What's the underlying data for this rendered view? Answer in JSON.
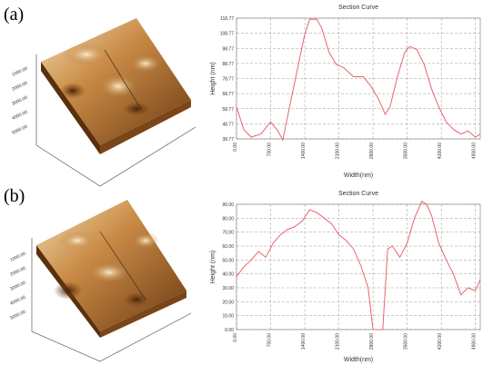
{
  "chart_data": [
    {
      "type": "line",
      "label": "(a)",
      "title": "Section Curve",
      "y_label": "Height (nm)",
      "x_label": "Width(nm)",
      "x": [
        0,
        150,
        300,
        500,
        700,
        850,
        950,
        1100,
        1250,
        1400,
        1500,
        1650,
        1750,
        1900,
        2050,
        2200,
        2400,
        2600,
        2750,
        2900,
        3050,
        3150,
        3300,
        3450,
        3550,
        3700,
        3850,
        4000,
        4150,
        4300,
        4450,
        4600,
        4750,
        4900,
        5000
      ],
      "values": [
        60,
        45,
        40,
        42,
        50,
        44,
        38,
        62,
        85,
        108,
        118,
        118,
        112,
        96,
        88,
        86,
        80,
        80,
        74,
        66,
        55,
        60,
        80,
        96,
        100,
        98,
        88,
        72,
        60,
        50,
        45,
        42,
        44,
        40,
        42
      ],
      "color": "#e8646e",
      "xlim": [
        0,
        5000
      ],
      "ylim": [
        38.77,
        118.77
      ],
      "xticks": [
        {
          "value": 0,
          "label": "0.00"
        },
        {
          "value": 700,
          "label": "700.00"
        },
        {
          "value": 1400,
          "label": "1400.00"
        },
        {
          "value": 2100,
          "label": "2100.00"
        },
        {
          "value": 2800,
          "label": "2800.00"
        },
        {
          "value": 3500,
          "label": "3500.00"
        },
        {
          "value": 4200,
          "label": "4200.00"
        },
        {
          "value": 4900,
          "label": "4900.00"
        }
      ],
      "yticks": [
        38.77,
        48.77,
        58.77,
        68.77,
        78.77,
        88.77,
        98.77,
        108.77,
        118.77
      ],
      "grid": true
    },
    {
      "type": "line",
      "label": "(b)",
      "title": "Section Curve",
      "y_label": "Height (nm)",
      "x_label": "Width(nm)",
      "x": [
        0,
        150,
        300,
        450,
        600,
        750,
        900,
        1050,
        1200,
        1350,
        1500,
        1650,
        1800,
        1950,
        2100,
        2250,
        2400,
        2550,
        2700,
        2800,
        2900,
        3000,
        3100,
        3200,
        3350,
        3500,
        3650,
        3800,
        3900,
        4000,
        4150,
        4300,
        4450,
        4600,
        4750,
        4900,
        5000
      ],
      "values": [
        38,
        45,
        50,
        56,
        52,
        62,
        68,
        72,
        74,
        78,
        86,
        84,
        80,
        76,
        68,
        64,
        58,
        46,
        30,
        0,
        0,
        0,
        58,
        60,
        52,
        62,
        80,
        92,
        90,
        82,
        62,
        50,
        40,
        25,
        30,
        28,
        36
      ],
      "color": "#e8646e",
      "xlim": [
        0,
        5000
      ],
      "ylim": [
        0,
        90
      ],
      "xticks": [
        {
          "value": 0,
          "label": "0.00"
        },
        {
          "value": 700,
          "label": "700.00"
        },
        {
          "value": 1400,
          "label": "1400.00"
        },
        {
          "value": 2100,
          "label": "2100.00"
        },
        {
          "value": 2800,
          "label": "2800.00"
        },
        {
          "value": 3500,
          "label": "3500.00"
        },
        {
          "value": 4200,
          "label": "4200.00"
        },
        {
          "value": 4900,
          "label": "4900.00"
        }
      ],
      "yticks": [
        {
          "value": 0,
          "label": "0.00"
        },
        {
          "value": 10,
          "label": "10.00"
        },
        {
          "value": 20,
          "label": "20.00"
        },
        {
          "value": 30,
          "label": "30.00"
        },
        {
          "value": 40,
          "label": "40.00"
        },
        {
          "value": 50,
          "label": "50.00"
        },
        {
          "value": 60,
          "label": "60.00"
        },
        {
          "value": 70,
          "label": "70.00"
        },
        {
          "value": 80,
          "label": "80.00"
        },
        {
          "value": 90,
          "label": "90.00"
        }
      ],
      "grid": true
    }
  ],
  "afm_axis_labels": [
    "1000.00",
    "2000.00",
    "3000.00",
    "4000.00",
    "5000.00"
  ]
}
